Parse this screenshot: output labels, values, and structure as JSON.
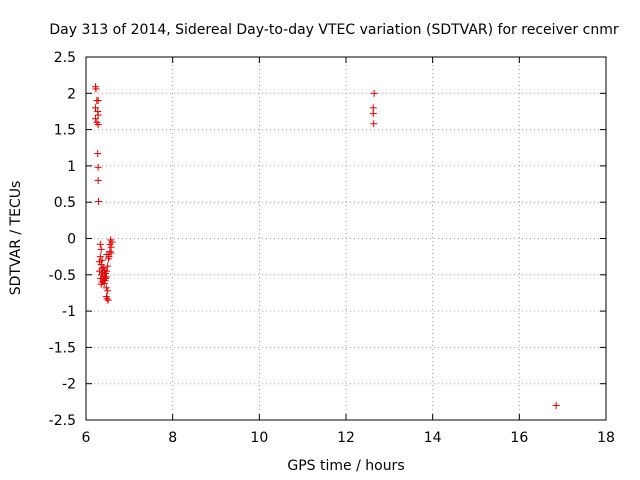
{
  "chart_data": {
    "type": "scatter",
    "title": "Day 313 of 2014, Sidereal Day-to-day VTEC variation (SDTVAR) for receiver cnmr",
    "xlabel": "GPS time / hours",
    "ylabel": "SDTVAR / TECUs",
    "xlim": [
      6,
      18
    ],
    "ylim": [
      -2.5,
      2.5
    ],
    "xticks": [
      6,
      8,
      10,
      12,
      14,
      16,
      18
    ],
    "yticks": [
      2.5,
      2,
      1.5,
      1,
      0.5,
      0,
      -0.5,
      -1,
      -1.5,
      -2,
      -2.5
    ],
    "xtick_labels": [
      "6",
      "8",
      "10",
      "12",
      "14",
      "16",
      "18"
    ],
    "ytick_labels": [
      "2.5",
      "2",
      "1.5",
      "1",
      "0.5",
      "0",
      "-0.5",
      "-1",
      "-1.5",
      "-2",
      "-2.5"
    ],
    "grid": true,
    "marker": "+",
    "color": "#e00000",
    "series": [
      {
        "name": "SDTVAR",
        "points": [
          [
            6.22,
            2.09
          ],
          [
            6.23,
            2.06
          ],
          [
            6.25,
            1.9
          ],
          [
            6.28,
            1.9
          ],
          [
            6.22,
            1.8
          ],
          [
            6.27,
            1.75
          ],
          [
            6.28,
            1.7
          ],
          [
            6.22,
            1.65
          ],
          [
            6.25,
            1.6
          ],
          [
            6.28,
            1.57
          ],
          [
            6.27,
            1.17
          ],
          [
            6.28,
            0.98
          ],
          [
            6.28,
            0.8
          ],
          [
            6.29,
            0.51
          ],
          [
            6.33,
            -0.08
          ],
          [
            6.35,
            -0.15
          ],
          [
            6.33,
            -0.25
          ],
          [
            6.37,
            -0.3
          ],
          [
            6.31,
            -0.32
          ],
          [
            6.35,
            -0.36
          ],
          [
            6.4,
            -0.4
          ],
          [
            6.37,
            -0.42
          ],
          [
            6.43,
            -0.44
          ],
          [
            6.31,
            -0.45
          ],
          [
            6.38,
            -0.47
          ],
          [
            6.45,
            -0.48
          ],
          [
            6.36,
            -0.5
          ],
          [
            6.42,
            -0.52
          ],
          [
            6.47,
            -0.53
          ],
          [
            6.34,
            -0.55
          ],
          [
            6.4,
            -0.57
          ],
          [
            6.44,
            -0.58
          ],
          [
            6.37,
            -0.6
          ],
          [
            6.42,
            -0.62
          ],
          [
            6.35,
            -0.63
          ],
          [
            6.45,
            -0.55
          ],
          [
            6.48,
            -0.45
          ],
          [
            6.5,
            -0.38
          ],
          [
            6.52,
            -0.28
          ],
          [
            6.48,
            -0.22
          ],
          [
            6.55,
            -0.18
          ],
          [
            6.58,
            -0.12
          ],
          [
            6.55,
            -0.08
          ],
          [
            6.6,
            -0.05
          ],
          [
            6.57,
            -0.02
          ],
          [
            6.58,
            -0.2
          ],
          [
            6.53,
            -0.25
          ],
          [
            6.47,
            -0.68
          ],
          [
            6.5,
            -0.72
          ],
          [
            6.47,
            -0.8
          ],
          [
            6.49,
            -0.83
          ],
          [
            6.51,
            -0.85
          ],
          [
            12.65,
            2.0
          ],
          [
            12.63,
            1.8
          ],
          [
            12.63,
            1.72
          ],
          [
            12.64,
            1.58
          ],
          [
            16.85,
            -2.3
          ]
        ]
      }
    ]
  }
}
